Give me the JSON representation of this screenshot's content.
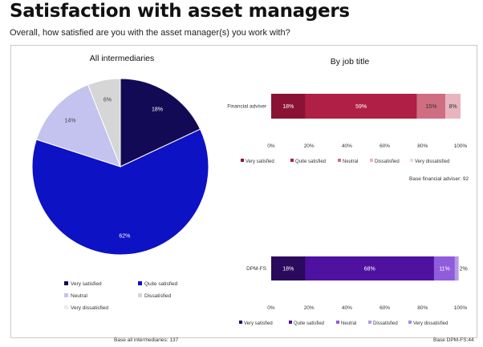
{
  "page": {
    "title": "Satisfaction with asset managers",
    "subtitle": "Overall, how satisfied are you with the asset manager(s) you work with?"
  },
  "colors": {
    "pie": [
      "#120a55",
      "#0d12c4",
      "#c4c3ef",
      "#d6d6d6",
      "#ececec"
    ],
    "adviser": [
      "#8a1333",
      "#b01f45",
      "#cf6e80",
      "#e8b5bf",
      "#f3d6dc"
    ],
    "dpm": [
      "#2a0a5c",
      "#4e11a0",
      "#8f5cdc",
      "#b59ae6",
      "#a78cde"
    ]
  },
  "chart_data": [
    {
      "type": "pie",
      "title": "All intermediaries",
      "labels": [
        "Very satisfied",
        "Quite satisfied",
        "Neutral",
        "Dissatisfied",
        "Very dissatisfied"
      ],
      "values": [
        18,
        62,
        14,
        6,
        0
      ],
      "data_labels": [
        "18%",
        "62%",
        "14%",
        "6%",
        ""
      ],
      "legend": "bottom",
      "note": "Base all intermediaries: 137"
    },
    {
      "type": "bar",
      "orientation": "horizontal-stacked",
      "title": "By job title",
      "categories": [
        "Financial adviser"
      ],
      "series": [
        {
          "name": "Very satisfied",
          "values": [
            18
          ],
          "label": "18%"
        },
        {
          "name": "Quite satisfied",
          "values": [
            59
          ],
          "label": "59%"
        },
        {
          "name": "Neutral",
          "values": [
            15
          ],
          "label": "15%"
        },
        {
          "name": "Dissatisfied",
          "values": [
            8
          ],
          "label": "8%"
        },
        {
          "name": "Very dissatisfied",
          "values": [
            0
          ],
          "label": ""
        }
      ],
      "xticks": [
        "0%",
        "20%",
        "40%",
        "60%",
        "80%",
        "100%"
      ],
      "xlim": [
        0,
        100
      ],
      "legend": "bottom",
      "note": "Base financial adviser: 92"
    },
    {
      "type": "bar",
      "orientation": "horizontal-stacked",
      "title": "",
      "categories": [
        "DPM-FS"
      ],
      "series": [
        {
          "name": "Very satisfied",
          "values": [
            18
          ],
          "label": "18%"
        },
        {
          "name": "Quite satisfied",
          "values": [
            68
          ],
          "label": "68%"
        },
        {
          "name": "Neutral",
          "values": [
            11
          ],
          "label": "11%"
        },
        {
          "name": "Dissatisfied",
          "values": [
            2
          ],
          "label": "2%"
        },
        {
          "name": "Very dissatisfied",
          "values": [
            0
          ],
          "label": ""
        }
      ],
      "xticks": [
        "0%",
        "20%",
        "40%",
        "60%",
        "80%",
        "100%"
      ],
      "xlim": [
        0,
        100
      ],
      "legend": "bottom",
      "note": "Base DPM-FS:44"
    }
  ]
}
